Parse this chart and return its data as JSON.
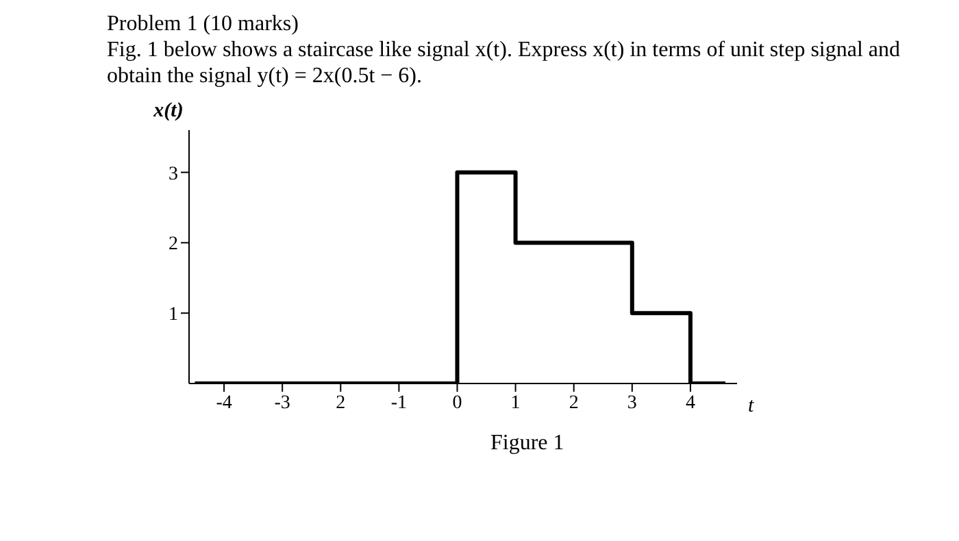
{
  "chart_data": {
    "type": "step",
    "title": "Problem 1 (10 marks)",
    "subtitle": "Fig. 1 below shows a staircase like signal x(t). Express x(t) in terms of unit step signal and obtain the signal y(t) = 2x(0.5t − 6).",
    "xlabel": "t",
    "ylabel": "x(t)",
    "x": [
      -4.5,
      0,
      1,
      3,
      4,
      4.6
    ],
    "series": [
      {
        "color": "#000000",
        "values": [
          0,
          3,
          2,
          1,
          0,
          0
        ]
      }
    ],
    "xlim": [
      -4.6,
      4.8
    ],
    "ylim": [
      0,
      3.6
    ],
    "xticks": [
      -4,
      -3,
      {
        "value": -2,
        "label": "2"
      },
      -1,
      0,
      1,
      2,
      3,
      4
    ],
    "yticks": [
      1,
      2,
      3
    ],
    "marker": "none",
    "line_style": "solid",
    "grid": false,
    "legend": false,
    "annotations": [
      "Figure 1"
    ]
  }
}
